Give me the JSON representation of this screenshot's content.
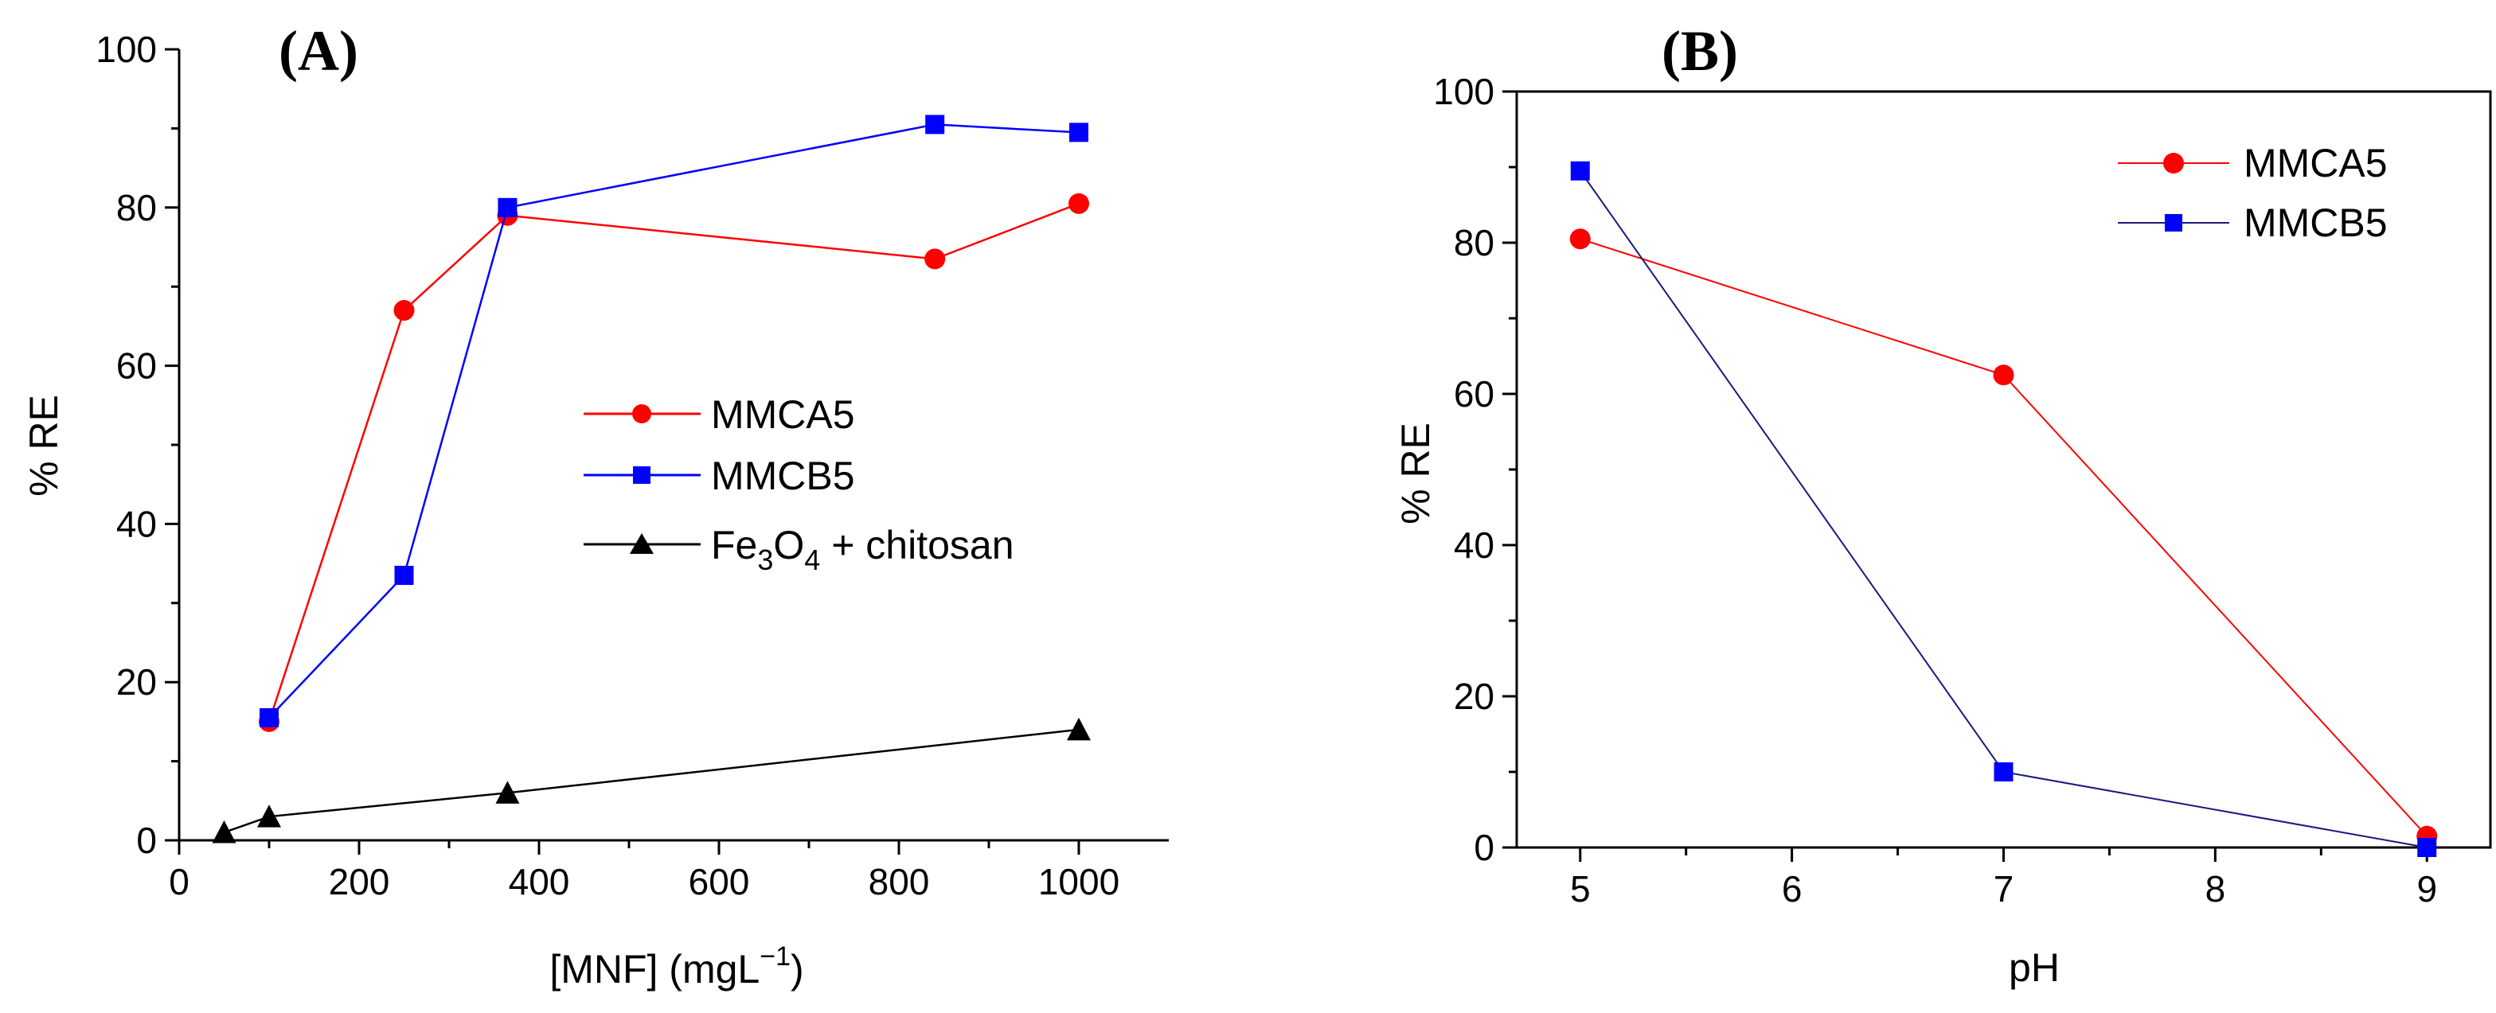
{
  "chart_data": [
    {
      "type": "line",
      "panel_label": "(A)",
      "xlabel": "[MNF] (mgL",
      "xlabel_sup": "−1",
      "xlabel_end": ")",
      "ylabel": "% RE",
      "xlim": [
        0,
        1100
      ],
      "ylim": [
        0,
        100
      ],
      "xticks": [
        0,
        200,
        400,
        600,
        800,
        1000
      ],
      "yticks": [
        0,
        20,
        40,
        60,
        80,
        100
      ],
      "legend_position": "center-right",
      "series": [
        {
          "name": "MMCA5",
          "color": "#ff0000",
          "marker": "circle",
          "x": [
            100,
            250,
            365,
            840,
            1000
          ],
          "y": [
            15,
            67,
            79,
            73.5,
            80.5
          ]
        },
        {
          "name": "MMCB5",
          "color": "#0000ff",
          "marker": "square",
          "x": [
            100,
            250,
            365,
            840,
            1000
          ],
          "y": [
            15.5,
            33.5,
            80,
            90.5,
            89.5
          ]
        },
        {
          "name": "Fe3O4 + chitosan",
          "legend_parts": [
            "Fe",
            "3",
            "O",
            "4",
            " + chitosan"
          ],
          "color": "#000000",
          "marker": "triangle",
          "x": [
            50,
            100,
            365,
            1000
          ],
          "y": [
            1,
            3,
            6,
            14
          ]
        }
      ]
    },
    {
      "type": "line",
      "panel_label": "(B)",
      "xlabel": "pH",
      "ylabel": "% RE",
      "xlim": [
        4.7,
        9.3
      ],
      "ylim": [
        0,
        100
      ],
      "xticks": [
        5,
        6,
        7,
        8,
        9
      ],
      "yticks": [
        0,
        20,
        40,
        60,
        80,
        100
      ],
      "legend_position": "top-right",
      "series": [
        {
          "name": "MMCA5",
          "color": "#ff0000",
          "marker": "circle",
          "x": [
            5,
            7,
            9
          ],
          "y": [
            80.5,
            62.5,
            1.5
          ]
        },
        {
          "name": "MMCB5",
          "color": "#0000ff",
          "marker": "square",
          "x": [
            5,
            7,
            9
          ],
          "y": [
            89.5,
            10,
            0
          ]
        }
      ]
    }
  ]
}
